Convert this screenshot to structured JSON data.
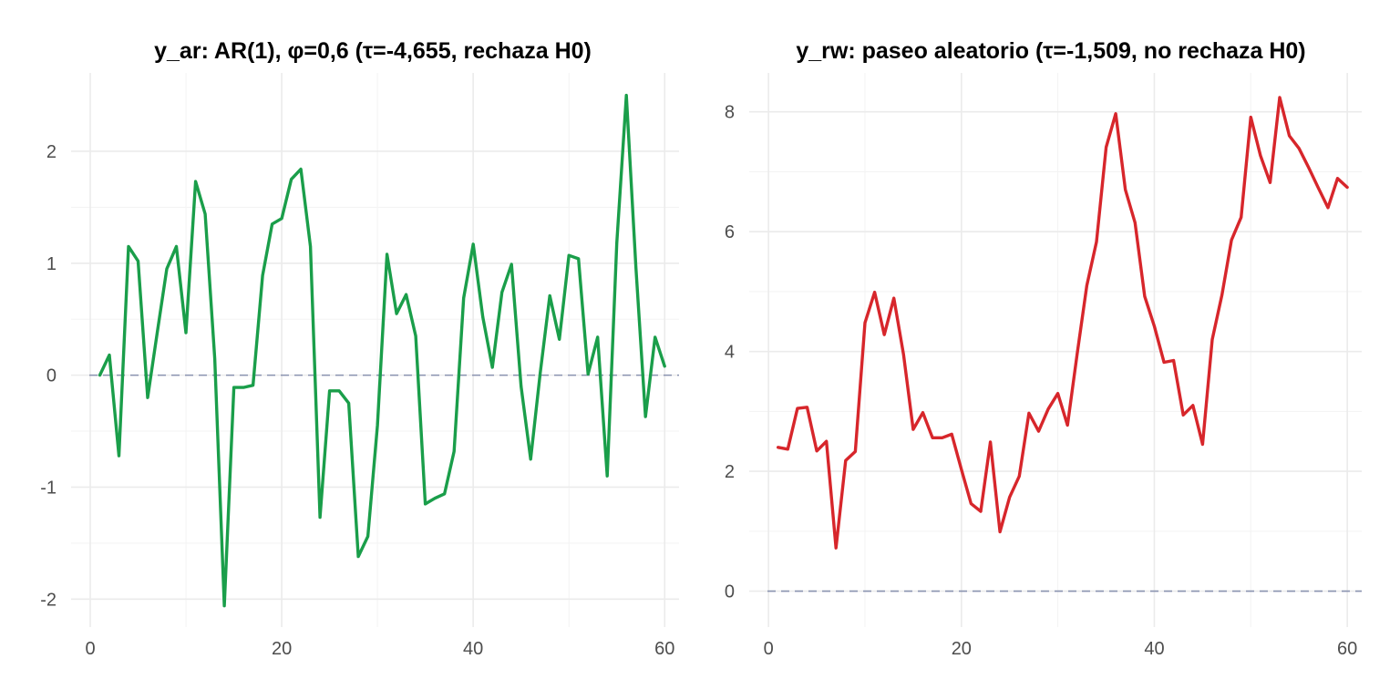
{
  "chart_data": [
    {
      "type": "line",
      "title": "y_ar: AR(1), φ=0,6 (τ=-4,655, rechaza H0)",
      "xlabel": "",
      "ylabel": "",
      "xlim": [
        -2,
        61.5
      ],
      "ylim": [
        -2.25,
        2.7
      ],
      "x_ticks": [
        0,
        20,
        40,
        60
      ],
      "y_ticks": [
        -2,
        -1,
        0,
        1,
        2
      ],
      "x_tick_labels": [
        "0",
        "20",
        "40",
        "60"
      ],
      "y_tick_labels": [
        "-2",
        "-1",
        "0",
        "1",
        "2"
      ],
      "grid": true,
      "reference_line": {
        "y": 0,
        "style": "dashed",
        "color": "#8a93b0"
      },
      "series": [
        {
          "color": "#1a9e4a",
          "x": [
            1,
            2,
            3,
            4,
            5,
            6,
            7,
            8,
            9,
            10,
            11,
            12,
            13,
            14,
            15,
            16,
            17,
            18,
            19,
            20,
            21,
            22,
            23,
            24,
            25,
            26,
            27,
            28,
            29,
            30,
            31,
            32,
            33,
            34,
            35,
            36,
            37,
            38,
            39,
            40,
            41,
            42,
            43,
            44,
            45,
            46,
            47,
            48,
            49,
            50,
            51,
            52,
            53,
            54,
            55,
            56,
            57,
            58,
            59,
            60
          ],
          "values": [
            0.0,
            0.18,
            -0.72,
            1.15,
            1.02,
            -0.2,
            0.38,
            0.95,
            1.15,
            0.38,
            1.73,
            1.44,
            0.15,
            -2.06,
            -0.11,
            -0.11,
            -0.09,
            0.89,
            1.35,
            1.4,
            1.75,
            1.84,
            1.15,
            -1.27,
            -0.14,
            -0.14,
            -0.25,
            -1.62,
            -1.44,
            -0.45,
            1.08,
            0.55,
            0.72,
            0.35,
            -1.15,
            -1.1,
            -1.06,
            -0.68,
            0.69,
            1.17,
            0.52,
            0.07,
            0.74,
            0.99,
            -0.1,
            -0.75,
            0.02,
            0.71,
            0.32,
            1.07,
            1.04,
            0.01,
            0.34,
            -0.9,
            1.18,
            2.5,
            0.96,
            -0.37,
            0.34,
            0.08
          ]
        }
      ]
    },
    {
      "type": "line",
      "title": "y_rw: paseo aleatorio (τ=-1,509, no rechaza H0)",
      "xlabel": "",
      "ylabel": "",
      "xlim": [
        -2,
        61.5
      ],
      "ylim": [
        -0.6,
        8.65
      ],
      "x_ticks": [
        0,
        20,
        40,
        60
      ],
      "y_ticks": [
        0,
        2,
        4,
        6,
        8
      ],
      "x_tick_labels": [
        "0",
        "20",
        "40",
        "60"
      ],
      "y_tick_labels": [
        "0",
        "2",
        "4",
        "6",
        "8"
      ],
      "grid": true,
      "reference_line": {
        "y": 0,
        "style": "dashed",
        "color": "#8a93b0"
      },
      "series": [
        {
          "color": "#d7262b",
          "x": [
            1,
            2,
            3,
            4,
            5,
            6,
            7,
            8,
            9,
            10,
            11,
            12,
            13,
            14,
            15,
            16,
            17,
            18,
            19,
            20,
            21,
            22,
            23,
            24,
            25,
            26,
            27,
            28,
            29,
            30,
            31,
            32,
            33,
            34,
            35,
            36,
            37,
            38,
            39,
            40,
            41,
            42,
            43,
            44,
            45,
            46,
            47,
            48,
            49,
            50,
            51,
            52,
            53,
            54,
            55,
            56,
            57,
            58,
            59,
            60
          ],
          "values": [
            2.4,
            2.37,
            3.05,
            3.07,
            2.34,
            2.5,
            0.72,
            2.18,
            2.33,
            4.48,
            4.99,
            4.28,
            4.89,
            3.95,
            2.7,
            2.98,
            2.56,
            2.56,
            2.62,
            2.03,
            1.46,
            1.33,
            2.49,
            0.99,
            1.57,
            1.92,
            2.97,
            2.67,
            3.04,
            3.3,
            2.77,
            3.96,
            5.1,
            5.83,
            7.41,
            7.97,
            6.7,
            6.15,
            4.92,
            4.42,
            3.82,
            3.85,
            2.94,
            3.1,
            2.45,
            4.2,
            4.94,
            5.86,
            6.24,
            7.91,
            7.27,
            6.82,
            8.24,
            7.6,
            7.39,
            7.07,
            6.73,
            6.4,
            6.89,
            6.74
          ]
        }
      ]
    }
  ]
}
